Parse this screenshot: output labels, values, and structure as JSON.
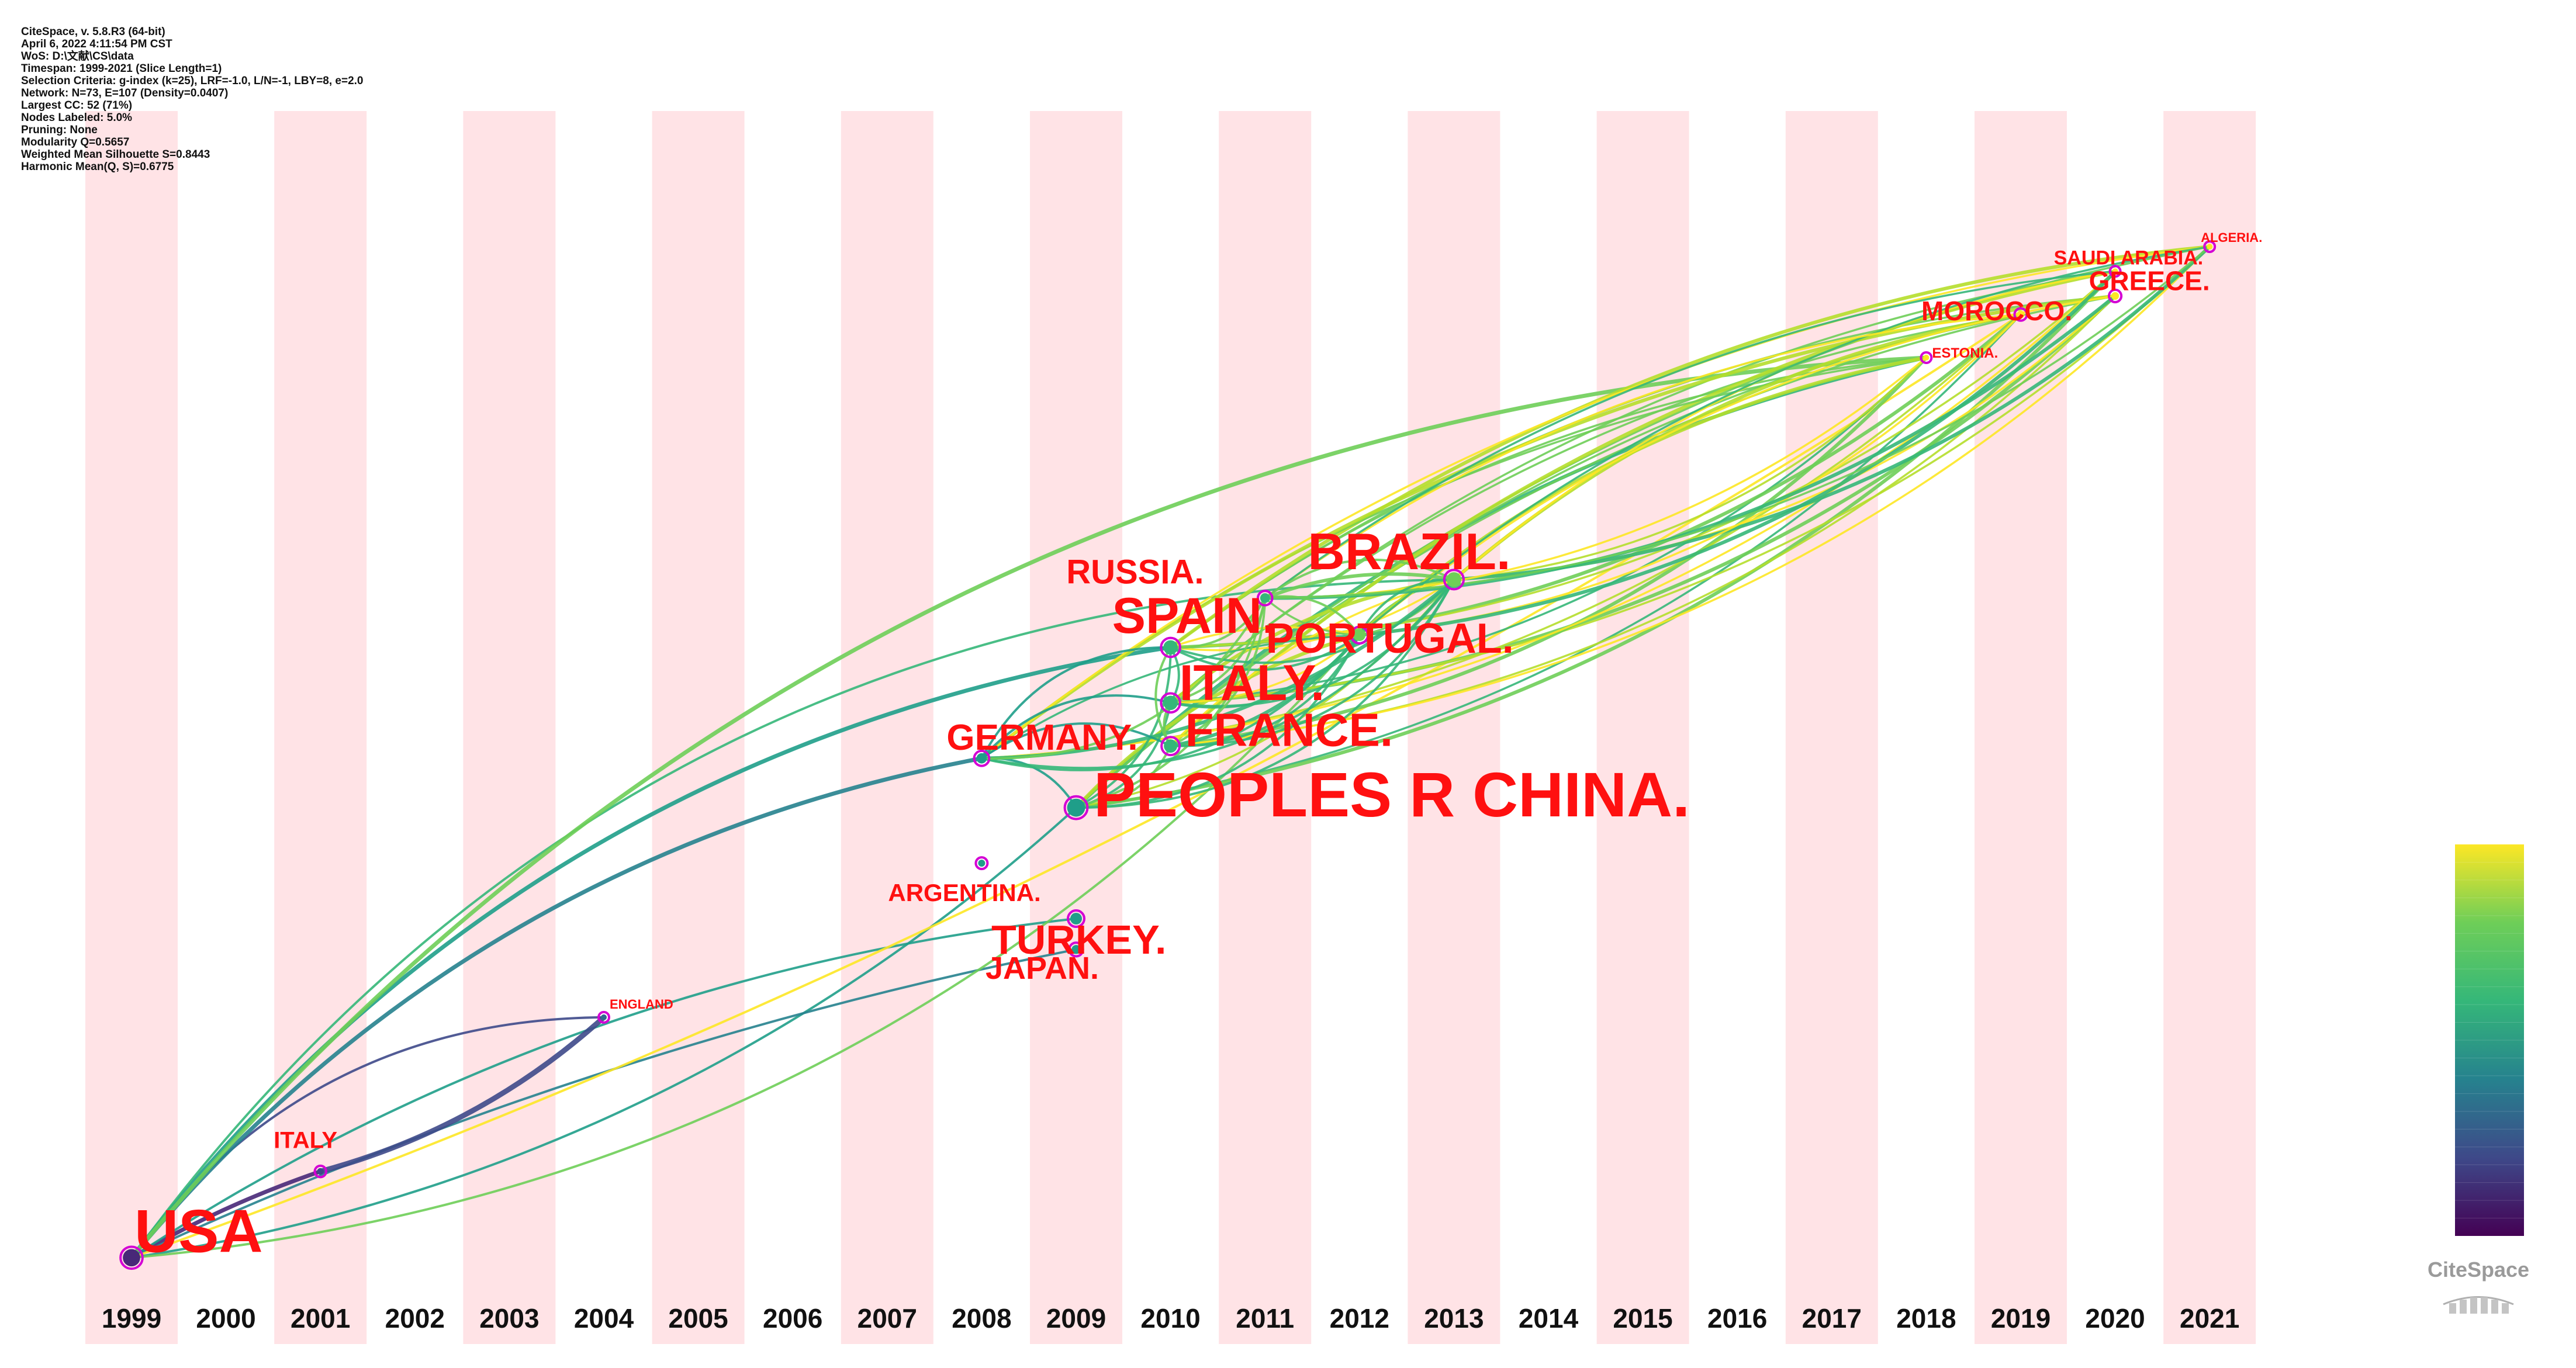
{
  "info": [
    "CiteSpace, v. 5.8.R3 (64-bit)",
    "April 6, 2022 4:11:54 PM CST",
    "WoS: D:\\文献\\CS\\data",
    "Timespan: 1999-2021 (Slice Length=1)",
    "Selection Criteria: g-index (k=25), LRF=-1.0, L/N=-1, LBY=8, e=2.0",
    "Network: N=73, E=107 (Density=0.0407)",
    "Largest CC: 52 (71%)",
    "Nodes Labeled: 5.0%",
    "Pruning: None",
    "Modularity Q=0.5657",
    "Weighted Mean Silhouette S=0.8443",
    "Harmonic Mean(Q, S)=0.6775"
  ],
  "years": [
    "1999",
    "2000",
    "2001",
    "2002",
    "2003",
    "2004",
    "2005",
    "2006",
    "2007",
    "2008",
    "2009",
    "2010",
    "2011",
    "2012",
    "2013",
    "2014",
    "2015",
    "2016",
    "2017",
    "2018",
    "2019",
    "2020",
    "2021"
  ],
  "nodes": [
    {
      "label": "USA",
      "year": 1999,
      "row": 0.93,
      "size": 104
    },
    {
      "label": "ITALY",
      "year": 2001,
      "row": 0.86,
      "size": 40
    },
    {
      "label": "ENGLAND",
      "year": 2004,
      "row": 0.735,
      "size": 22
    },
    {
      "label": "PEOPLES R CHINA.",
      "year": 2009,
      "row": 0.565,
      "size": 108
    },
    {
      "label": "GERMANY.",
      "year": 2008,
      "row": 0.525,
      "size": 62
    },
    {
      "label": "ARGENTINA.",
      "year": 2008,
      "row": 0.61,
      "size": 42
    },
    {
      "label": "TURKEY.",
      "year": 2009,
      "row": 0.655,
      "size": 70
    },
    {
      "label": "JAPAN.",
      "year": 2009,
      "row": 0.68,
      "size": 54
    },
    {
      "label": "FRANCE.",
      "year": 2010,
      "row": 0.515,
      "size": 80
    },
    {
      "label": "ITALY.",
      "year": 2010,
      "row": 0.48,
      "size": 86
    },
    {
      "label": "SPAIN.",
      "year": 2010,
      "row": 0.435,
      "size": 86
    },
    {
      "label": "RUSSIA.",
      "year": 2011,
      "row": 0.395,
      "size": 58
    },
    {
      "label": "PORTUGAL.",
      "year": 2012,
      "row": 0.425,
      "size": 72
    },
    {
      "label": "BRAZIL.",
      "year": 2013,
      "row": 0.38,
      "size": 88
    },
    {
      "label": "ESTONIA.",
      "year": 2018,
      "row": 0.2,
      "size": 24
    },
    {
      "label": "MOROCCO.",
      "year": 2019,
      "row": 0.165,
      "size": 46
    },
    {
      "label": "GREECE.",
      "year": 2020,
      "row": 0.15,
      "size": 46
    },
    {
      "label": "SAUDI ARABIA.",
      "year": 2020,
      "row": 0.13,
      "size": 34
    },
    {
      "label": "ALGERIA.",
      "year": 2021,
      "row": 0.11,
      "size": 22
    }
  ],
  "legend": {
    "colors": [
      "#440154",
      "#482878",
      "#3e4989",
      "#31688e",
      "#26828e",
      "#1f9e89",
      "#35b779",
      "#6ece58",
      "#b5de2b",
      "#fde725"
    ]
  },
  "logo": {
    "text": "CiteSpace"
  }
}
